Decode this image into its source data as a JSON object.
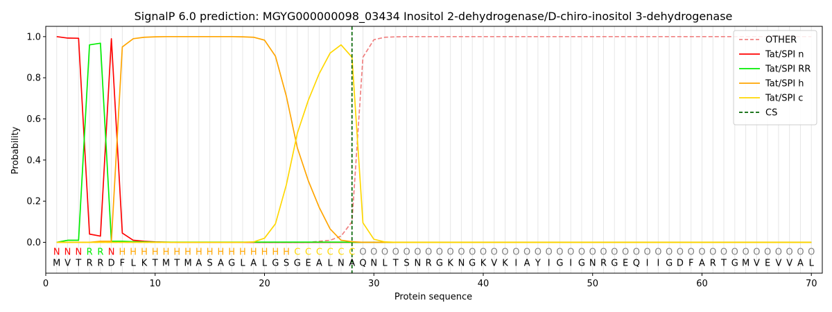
{
  "chart_data": {
    "type": "line",
    "title": "SignalP 6.0 prediction: MGYG000000098_03434 Inositol 2-dehydrogenase/D-chiro-inositol 3-dehydrogenase",
    "xlabel": "Protein sequence",
    "ylabel": "Probability",
    "xlim": [
      0,
      71
    ],
    "ylim": [
      -0.15,
      1.05
    ],
    "x_ticks": [
      0,
      10,
      20,
      30,
      40,
      50,
      60,
      70
    ],
    "y_ticks": [
      0.0,
      0.2,
      0.4,
      0.6,
      0.8,
      1.0
    ],
    "x_tick_labels": [
      "0",
      "10",
      "20",
      "30",
      "40",
      "50",
      "60",
      "70"
    ],
    "y_tick_labels": [
      "0.0",
      "0.2",
      "0.4",
      "0.6",
      "0.8",
      "1.0"
    ],
    "legend_position": "top-right",
    "grid": "vertical lines at each residue position",
    "x": [
      1,
      2,
      3,
      4,
      5,
      6,
      7,
      8,
      9,
      10,
      11,
      12,
      13,
      14,
      15,
      16,
      17,
      18,
      19,
      20,
      21,
      22,
      23,
      24,
      25,
      26,
      27,
      28,
      29,
      30,
      31,
      32,
      33,
      34,
      35,
      36,
      37,
      38,
      39,
      40,
      41,
      42,
      43,
      44,
      45,
      46,
      47,
      48,
      49,
      50,
      51,
      52,
      53,
      54,
      55,
      56,
      57,
      58,
      59,
      60,
      61,
      62,
      63,
      64,
      65,
      66,
      67,
      68,
      69,
      70
    ],
    "sequence": [
      "M",
      "V",
      "T",
      "R",
      "R",
      "D",
      "F",
      "L",
      "K",
      "T",
      "M",
      "T",
      "M",
      "A",
      "S",
      "A",
      "G",
      "L",
      "A",
      "L",
      "G",
      "S",
      "G",
      "E",
      "A",
      "L",
      "N",
      "A",
      "Q",
      "N",
      "L",
      "T",
      "S",
      "N",
      "R",
      "G",
      "K",
      "N",
      "G",
      "K",
      "V",
      "K",
      "I",
      "A",
      "Y",
      "I",
      "G",
      "I",
      "G",
      "N",
      "R",
      "G",
      "E",
      "Q",
      "I",
      "I",
      "G",
      "D",
      "F",
      "A",
      "R",
      "T",
      "G",
      "M",
      "V",
      "E",
      "V",
      "V",
      "A",
      "L"
    ],
    "predicted_states": [
      "N",
      "N",
      "N",
      "R",
      "R",
      "N",
      "H",
      "H",
      "H",
      "H",
      "H",
      "H",
      "H",
      "H",
      "H",
      "H",
      "H",
      "H",
      "H",
      "H",
      "H",
      "H",
      "C",
      "C",
      "C",
      "C",
      "C",
      "C",
      "O",
      "O",
      "O",
      "O",
      "O",
      "O",
      "O",
      "O",
      "O",
      "O",
      "O",
      "O",
      "O",
      "O",
      "O",
      "O",
      "O",
      "O",
      "O",
      "O",
      "O",
      "O",
      "O",
      "O",
      "O",
      "O",
      "O",
      "O",
      "O",
      "O",
      "O",
      "O",
      "O",
      "O",
      "O",
      "O",
      "O",
      "O",
      "O",
      "O",
      "O",
      "O"
    ],
    "state_colors": {
      "N": "#ff0000",
      "R": "#00ee00",
      "H": "#ffa500",
      "C": "#ffd700",
      "O": "#808080"
    },
    "series": [
      {
        "name": "OTHER",
        "color": "#f08080",
        "dash": "dashed",
        "values": [
          0,
          0,
          0,
          0,
          0,
          0,
          0,
          0,
          0,
          0,
          0,
          0,
          0,
          0,
          0,
          0,
          0,
          0,
          0,
          0,
          0,
          0,
          0,
          0,
          0.005,
          0.01,
          0.03,
          0.1,
          0.9,
          0.985,
          0.997,
          0.999,
          1,
          1,
          1,
          1,
          1,
          1,
          1,
          1,
          1,
          1,
          1,
          1,
          1,
          1,
          1,
          1,
          1,
          1,
          1,
          1,
          1,
          1,
          1,
          1,
          1,
          1,
          1,
          1,
          1,
          1,
          1,
          1,
          1,
          1,
          1,
          1,
          1,
          1
        ]
      },
      {
        "name": "Tat/SPI n",
        "color": "#ff0000",
        "dash": "solid",
        "values": [
          1.0,
          0.993,
          0.992,
          0.04,
          0.03,
          0.99,
          0.045,
          0.01,
          0.005,
          0.002,
          0.001,
          0,
          0,
          0,
          0,
          0,
          0,
          0,
          0,
          0,
          0,
          0,
          0,
          0,
          0,
          0,
          0,
          0,
          0,
          0,
          0,
          0,
          0,
          0,
          0,
          0,
          0,
          0,
          0,
          0,
          0,
          0,
          0,
          0,
          0,
          0,
          0,
          0,
          0,
          0,
          0,
          0,
          0,
          0,
          0,
          0,
          0,
          0,
          0,
          0,
          0,
          0,
          0,
          0,
          0,
          0,
          0,
          0,
          0,
          0
        ]
      },
      {
        "name": "Tat/SPI RR",
        "color": "#00ee00",
        "dash": "solid",
        "values": [
          0,
          0.01,
          0.01,
          0.96,
          0.968,
          0.005,
          0.005,
          0.003,
          0.002,
          0.001,
          0.001,
          0.001,
          0.001,
          0.001,
          0.001,
          0.001,
          0.001,
          0.001,
          0.001,
          0.001,
          0.001,
          0.001,
          0.001,
          0.001,
          0.001,
          0.001,
          0.001,
          0,
          0,
          0,
          0,
          0,
          0,
          0,
          0,
          0,
          0,
          0,
          0,
          0,
          0,
          0,
          0,
          0,
          0,
          0,
          0,
          0,
          0,
          0,
          0,
          0,
          0,
          0,
          0,
          0,
          0,
          0,
          0,
          0,
          0,
          0,
          0,
          0,
          0,
          0,
          0,
          0,
          0,
          0
        ]
      },
      {
        "name": "Tat/SPI h",
        "color": "#ffa500",
        "dash": "solid",
        "values": [
          0,
          0,
          0,
          0,
          0.005,
          0.005,
          0.95,
          0.99,
          0.997,
          0.999,
          1,
          1,
          1,
          1,
          1,
          1,
          1,
          0.999,
          0.997,
          0.983,
          0.905,
          0.71,
          0.46,
          0.3,
          0.17,
          0.065,
          0.01,
          0.003,
          0,
          0,
          0,
          0,
          0,
          0,
          0,
          0,
          0,
          0,
          0,
          0,
          0,
          0,
          0,
          0,
          0,
          0,
          0,
          0,
          0,
          0,
          0,
          0,
          0,
          0,
          0,
          0,
          0,
          0,
          0,
          0,
          0,
          0,
          0,
          0,
          0,
          0,
          0,
          0,
          0,
          0
        ]
      },
      {
        "name": "Tat/SPI c",
        "color": "#ffd700",
        "dash": "solid",
        "values": [
          0,
          0,
          0,
          0,
          0,
          0,
          0,
          0,
          0,
          0,
          0,
          0,
          0,
          0,
          0,
          0,
          0,
          0,
          0.002,
          0.02,
          0.09,
          0.28,
          0.53,
          0.69,
          0.82,
          0.92,
          0.96,
          0.9,
          0.095,
          0.015,
          0.002,
          0,
          0,
          0,
          0,
          0,
          0,
          0,
          0,
          0,
          0,
          0,
          0,
          0,
          0,
          0,
          0,
          0,
          0,
          0,
          0,
          0,
          0,
          0,
          0,
          0,
          0,
          0,
          0,
          0,
          0,
          0,
          0,
          0,
          0,
          0,
          0,
          0,
          0,
          0
        ]
      },
      {
        "name": "CS",
        "color": "#006400",
        "dash": "dashed",
        "vertical_at": 28
      }
    ]
  }
}
